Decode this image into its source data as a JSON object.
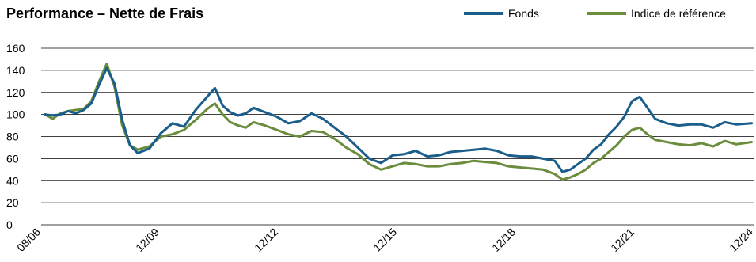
{
  "chart_data": {
    "type": "line",
    "title": "Performance – Nette de Frais",
    "ylim": [
      0,
      160
    ],
    "yticks": [
      0,
      20,
      40,
      60,
      80,
      100,
      120,
      140,
      160
    ],
    "xlim": [
      2006.5,
      2024.95
    ],
    "xtick_labels": [
      "08/06",
      "12/09",
      "12/12",
      "12/15",
      "12/18",
      "12/21",
      "12/24"
    ],
    "grid": "horizontal",
    "legend_position": "top-right",
    "series": [
      {
        "name": "Fonds",
        "color": "#1b5e8c",
        "x": [
          2006.6,
          2006.8,
          2007.0,
          2007.2,
          2007.4,
          2007.6,
          2007.8,
          2008.0,
          2008.2,
          2008.4,
          2008.6,
          2008.8,
          2009.0,
          2009.3,
          2009.6,
          2009.9,
          2010.2,
          2010.5,
          2010.8,
          2011.0,
          2011.2,
          2011.4,
          2011.6,
          2011.8,
          2012.0,
          2012.3,
          2012.6,
          2012.9,
          2013.2,
          2013.5,
          2013.8,
          2014.1,
          2014.4,
          2014.7,
          2015.0,
          2015.3,
          2015.6,
          2015.9,
          2016.2,
          2016.5,
          2016.8,
          2017.1,
          2017.4,
          2017.7,
          2018.0,
          2018.3,
          2018.6,
          2018.9,
          2019.2,
          2019.5,
          2019.8,
          2020.0,
          2020.2,
          2020.4,
          2020.6,
          2020.8,
          2021.0,
          2021.2,
          2021.4,
          2021.6,
          2021.8,
          2022.0,
          2022.2,
          2022.4,
          2022.7,
          2023.0,
          2023.3,
          2023.6,
          2023.9,
          2024.2,
          2024.5,
          2024.9
        ],
        "y": [
          100,
          99,
          100,
          103,
          101,
          104,
          110,
          127,
          142,
          128,
          95,
          72,
          65,
          69,
          83,
          92,
          89,
          104,
          116,
          124,
          108,
          102,
          99,
          101,
          106,
          102,
          98,
          92,
          94,
          101,
          96,
          88,
          80,
          70,
          60,
          56,
          63,
          64,
          67,
          62,
          63,
          66,
          67,
          68,
          69,
          67,
          63,
          62,
          62,
          60,
          58,
          48,
          50,
          55,
          60,
          68,
          73,
          82,
          89,
          98,
          112,
          116,
          106,
          96,
          92,
          90,
          91,
          91,
          88,
          93,
          91,
          92
        ]
      },
      {
        "name": "Indice de référence",
        "color": "#6b8c3c",
        "x": [
          2006.6,
          2006.8,
          2007.0,
          2007.2,
          2007.4,
          2007.6,
          2007.8,
          2008.0,
          2008.2,
          2008.4,
          2008.6,
          2008.8,
          2009.0,
          2009.3,
          2009.6,
          2009.9,
          2010.2,
          2010.5,
          2010.8,
          2011.0,
          2011.2,
          2011.4,
          2011.6,
          2011.8,
          2012.0,
          2012.3,
          2012.6,
          2012.9,
          2013.2,
          2013.5,
          2013.8,
          2014.1,
          2014.4,
          2014.7,
          2015.0,
          2015.3,
          2015.6,
          2015.9,
          2016.2,
          2016.5,
          2016.8,
          2017.1,
          2017.4,
          2017.7,
          2018.0,
          2018.3,
          2018.6,
          2018.9,
          2019.2,
          2019.5,
          2019.8,
          2020.0,
          2020.2,
          2020.4,
          2020.6,
          2020.8,
          2021.0,
          2021.2,
          2021.4,
          2021.6,
          2021.8,
          2022.0,
          2022.2,
          2022.4,
          2022.7,
          2023.0,
          2023.3,
          2023.6,
          2023.9,
          2024.2,
          2024.5,
          2024.9
        ],
        "y": [
          100,
          96,
          101,
          103,
          104,
          105,
          112,
          130,
          146,
          125,
          90,
          72,
          68,
          71,
          80,
          82,
          86,
          95,
          105,
          110,
          100,
          93,
          90,
          88,
          93,
          90,
          86,
          82,
          80,
          85,
          84,
          78,
          70,
          64,
          55,
          50,
          53,
          56,
          55,
          53,
          53,
          55,
          56,
          58,
          57,
          56,
          53,
          52,
          51,
          50,
          46,
          41,
          43,
          46,
          50,
          56,
          60,
          66,
          72,
          80,
          86,
          88,
          82,
          77,
          75,
          73,
          72,
          74,
          71,
          76,
          73,
          75
        ]
      }
    ]
  }
}
